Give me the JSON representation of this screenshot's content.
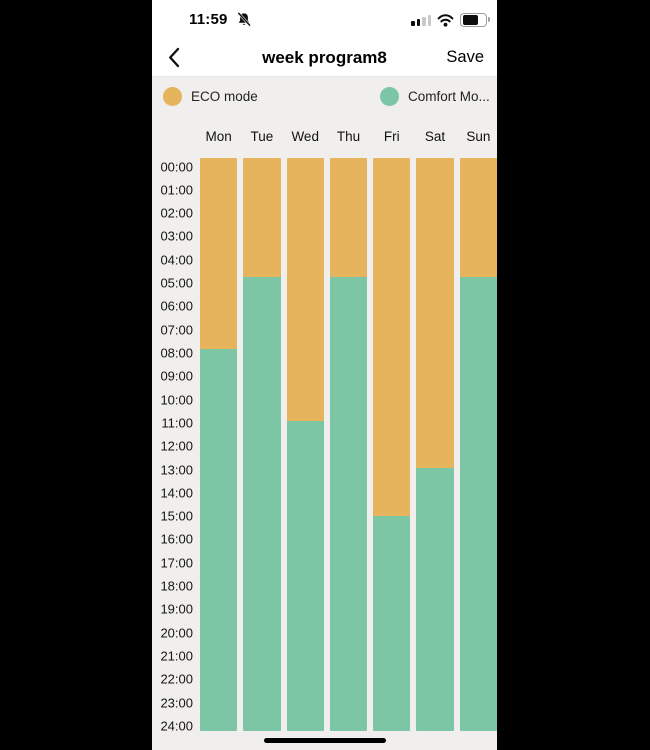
{
  "status_bar": {
    "time": "11:59",
    "notifications_muted": true,
    "cellular_bars_filled": 2,
    "cellular_bars_total": 4,
    "battery_fill_percent": 60
  },
  "header": {
    "title": "week program8",
    "save_label": "Save"
  },
  "colors": {
    "eco": "#e5b45c",
    "comfort": "#7cc5a5",
    "background": "#f0efed",
    "surface": "#ffffff"
  },
  "chart_data": {
    "type": "bar",
    "subtype": "stacked-vertical-daily-schedule",
    "title": "week program8",
    "legend_position": "top",
    "categories": [
      "Mon",
      "Tue",
      "Wed",
      "Thu",
      "Fri",
      "Sat",
      "Sun"
    ],
    "time_axis": {
      "start_hour": 0,
      "end_hour": 24,
      "tick_interval_hours": 1,
      "tick_labels": [
        "00:00",
        "01:00",
        "02:00",
        "03:00",
        "04:00",
        "05:00",
        "06:00",
        "07:00",
        "08:00",
        "09:00",
        "10:00",
        "11:00",
        "12:00",
        "13:00",
        "14:00",
        "15:00",
        "16:00",
        "17:00",
        "18:00",
        "19:00",
        "20:00",
        "21:00",
        "22:00",
        "23:00",
        "24:00"
      ]
    },
    "eco_until_hour_per_day": [
      8,
      5,
      11,
      5,
      15,
      13,
      5
    ],
    "series": [
      {
        "name": "ECO mode",
        "color": "#e5b45c",
        "ranges": [
          [
            0,
            8
          ],
          [
            0,
            5
          ],
          [
            0,
            11
          ],
          [
            0,
            5
          ],
          [
            0,
            15
          ],
          [
            0,
            13
          ],
          [
            0,
            5
          ]
        ]
      },
      {
        "name": "Comfort Mo...",
        "color": "#7cc5a5",
        "ranges": [
          [
            8,
            24
          ],
          [
            5,
            24
          ],
          [
            11,
            24
          ],
          [
            5,
            24
          ],
          [
            15,
            24
          ],
          [
            13,
            24
          ],
          [
            5,
            24
          ]
        ]
      }
    ]
  }
}
